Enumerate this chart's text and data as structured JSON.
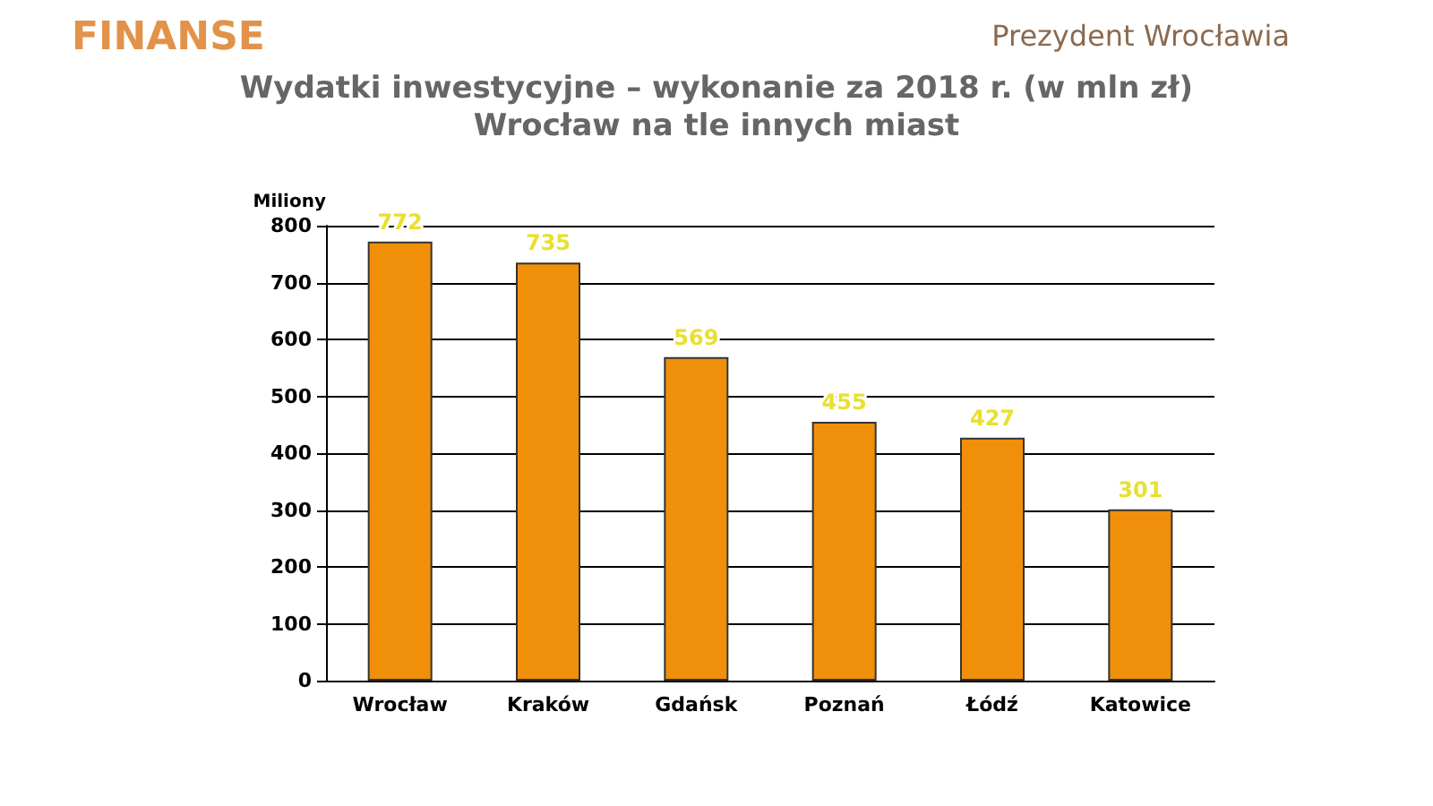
{
  "chart_data": {
    "type": "bar",
    "title": "Wydatki inwestycyjne – wykonanie za 2018 r. (w mln zł)",
    "subtitle": "Wrocław na tle innych miast",
    "ylabel": "Miliony",
    "annotations": [
      "FINANSE",
      "Prezydent Wrocławia"
    ],
    "categories": [
      "Wrocław",
      "Kraków",
      "Gdańsk",
      "Poznań",
      "Łódź",
      "Katowice"
    ],
    "values": [
      772,
      735,
      569,
      455,
      427,
      301
    ],
    "color": "#f0900a",
    "ylim": [
      0,
      800
    ],
    "yticks": [
      0,
      100,
      200,
      300,
      400,
      500,
      600,
      700,
      800
    ],
    "grid": "y",
    "data_labels": true
  }
}
